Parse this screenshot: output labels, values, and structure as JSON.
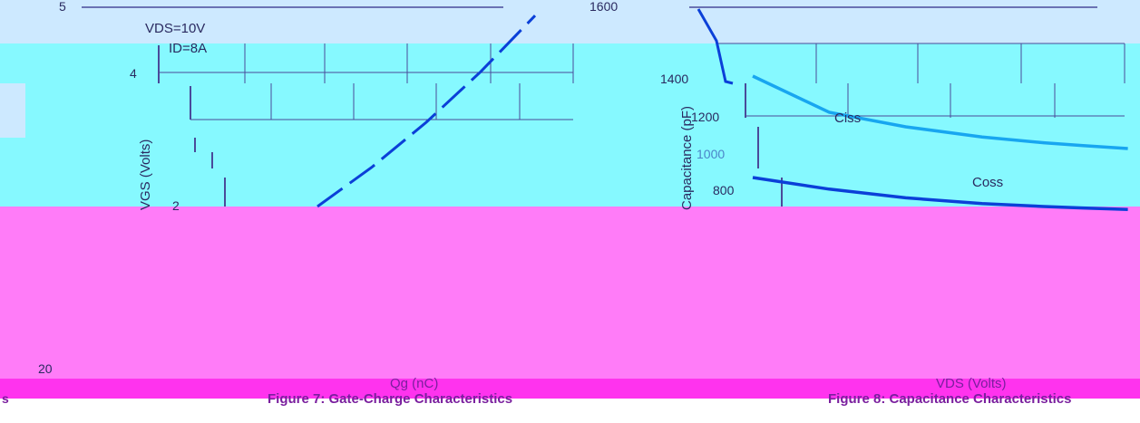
{
  "colors": {
    "background": "#ffffff",
    "overlay_top": "#cde9ff",
    "overlay_cyan": "#86f9ff",
    "overlay_magenta": "#ff7cf8",
    "overlay_magenta_dark": "#ff33ee",
    "curve": "#0b40d8",
    "curve_light": "#18a6f0",
    "grid": "#4a4a9a",
    "text": "#2a2a60"
  },
  "texts": {
    "left_ytick_top": "5",
    "left_vds": "VDS=10V",
    "left_id": "ID=8A",
    "left_ytick_4": "4",
    "left_ytick_2": "2",
    "left_ylabel": "VGS (Volts)",
    "left_bottom_num": "20",
    "left_xlabel": "Qg (nC)",
    "left_caption": "Figure 7: Gate-Charge Characteristics",
    "right_top_num": "1600",
    "right_tick_1400": "1400",
    "right_tick_1200": "1200",
    "right_tick_1000": "1000",
    "right_tick_800": "800",
    "right_ylabel": "Capacitance (pF)",
    "right_ciss": "Ciss",
    "right_coss": "Coss",
    "right_xlabel": "VDS (Volts)",
    "right_caption": "Figure 8: Capacitance Characteristics",
    "edge_glyph": "s"
  },
  "chart_data": [
    {
      "type": "line",
      "title": "Figure 7: Gate-Charge Characteristics",
      "xlabel": "Qg (nC)",
      "ylabel": "VGS (Volts)",
      "annotations": [
        "VDS=10V",
        "ID=8A"
      ],
      "series": [
        {
          "values_x": [
            13,
            14.5,
            16,
            17.5,
            19
          ],
          "values_y": [
            1.6,
            2.3,
            3.1,
            4.0,
            5.0
          ]
        }
      ]
    },
    {
      "type": "line",
      "title": "Figure 8: Capacitance Characteristics",
      "xlabel": "VDS (Volts)",
      "ylabel": "Capacitance (pF)",
      "series": [
        {
          "name": "Ciss",
          "values_x": [
            0.5,
            1,
            2,
            4,
            7,
            10,
            15
          ],
          "values_y": [
            1600,
            1350,
            1250,
            1180,
            1140,
            1120,
            1100
          ]
        },
        {
          "name": "Coss",
          "values_x": [
            0.5,
            1,
            2,
            4,
            7,
            10,
            15
          ],
          "values_y": [
            900,
            820,
            760,
            720,
            700,
            690,
            680
          ]
        }
      ]
    }
  ]
}
